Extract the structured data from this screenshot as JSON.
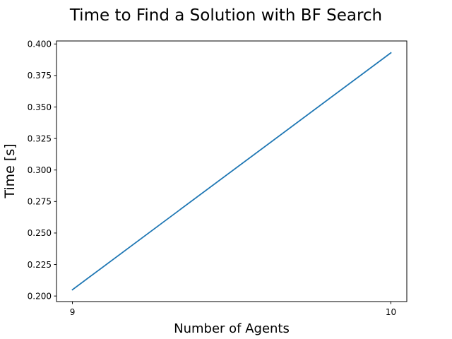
{
  "chart_data": {
    "type": "line",
    "title": "Time to Find a Solution with BF Search",
    "xlabel": "Number of Agents",
    "ylabel": "Time [s]",
    "x": [
      9,
      10
    ],
    "series": [
      {
        "values": [
          0.205,
          0.393
        ],
        "color": "#1f77b4"
      }
    ],
    "xlim": [
      8.95,
      10.05
    ],
    "ylim": [
      0.1956,
      0.4024
    ],
    "xticks": [
      9,
      10
    ],
    "xtick_labels": [
      "9",
      "10"
    ],
    "yticks": [
      0.2,
      0.225,
      0.25,
      0.275,
      0.3,
      0.325,
      0.35,
      0.375,
      0.4
    ],
    "ytick_labels": [
      "0.200",
      "0.225",
      "0.250",
      "0.275",
      "0.300",
      "0.325",
      "0.350",
      "0.375",
      "0.400"
    ],
    "grid": false,
    "legend": false
  }
}
